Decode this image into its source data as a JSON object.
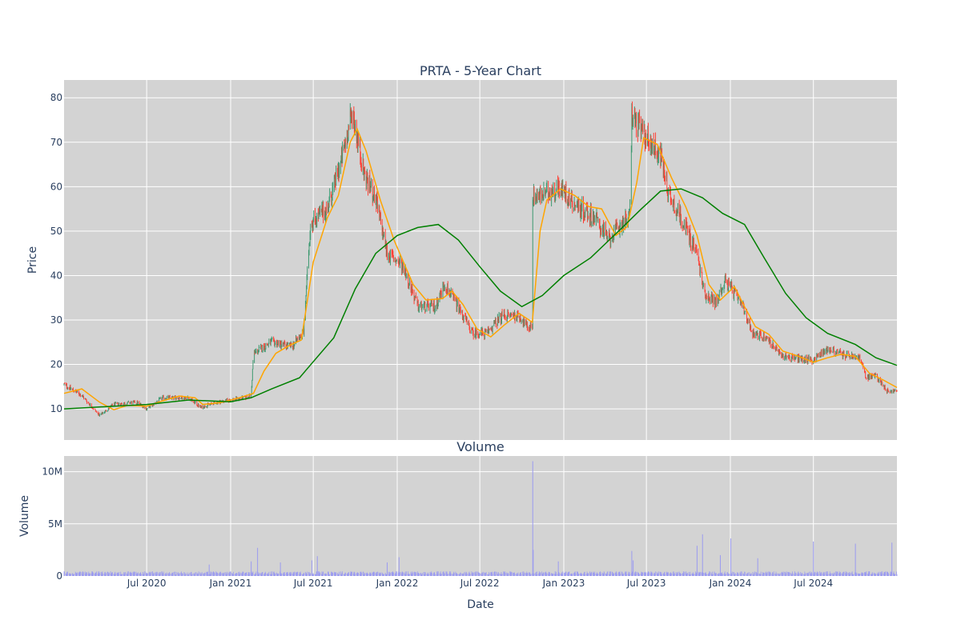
{
  "chart_data": [
    {
      "type": "candlestick",
      "title": "PRTA - 5-Year Chart",
      "xlabel": "",
      "ylabel": "Price",
      "ylim": [
        3,
        84
      ],
      "x_range": [
        "2020-01-02",
        "2024-12-31"
      ],
      "yticks": [
        10,
        20,
        30,
        40,
        50,
        60,
        70,
        80
      ],
      "grid": true,
      "plot_bg": "#d3d3d3",
      "colors": {
        "up": "#3d9970",
        "down": "#ff4136",
        "ma_short": "#ffa500",
        "ma_long": "#008000"
      },
      "price_anchors": [
        [
          "2020-01-02",
          15.5
        ],
        [
          "2020-02-10",
          13.0
        ],
        [
          "2020-03-20",
          8.5
        ],
        [
          "2020-04-20",
          11.0
        ],
        [
          "2020-06-10",
          11.5
        ],
        [
          "2020-07-01",
          10.0
        ],
        [
          "2020-08-05",
          12.5
        ],
        [
          "2020-10-01",
          12.5
        ],
        [
          "2020-10-28",
          10.3
        ],
        [
          "2020-12-01",
          11.5
        ],
        [
          "2021-02-01",
          12.5
        ],
        [
          "2021-02-15",
          13.0
        ],
        [
          "2021-02-20",
          22.5
        ],
        [
          "2021-04-01",
          25.0
        ],
        [
          "2021-05-15",
          24.0
        ],
        [
          "2021-06-10",
          27.5
        ],
        [
          "2021-06-25",
          52.0
        ],
        [
          "2021-08-01",
          55.0
        ],
        [
          "2021-09-01",
          66.0
        ],
        [
          "2021-09-25",
          77.0
        ],
        [
          "2021-10-20",
          63.0
        ],
        [
          "2021-11-15",
          57.0
        ],
        [
          "2021-12-10",
          45.0
        ],
        [
          "2022-01-15",
          42.0
        ],
        [
          "2022-02-15",
          33.0
        ],
        [
          "2022-03-25",
          33.0
        ],
        [
          "2022-04-15",
          38.0
        ],
        [
          "2022-05-15",
          33.0
        ],
        [
          "2022-06-15",
          27.0
        ],
        [
          "2022-07-15",
          27.0
        ],
        [
          "2022-08-20",
          31.0
        ],
        [
          "2022-09-25",
          31.0
        ],
        [
          "2022-10-15",
          28.0
        ],
        [
          "2022-10-24",
          29.0
        ],
        [
          "2022-10-25",
          58.0
        ],
        [
          "2022-11-20",
          58.0
        ],
        [
          "2022-12-20",
          60.0
        ],
        [
          "2023-01-25",
          56.0
        ],
        [
          "2023-03-10",
          53.0
        ],
        [
          "2023-04-10",
          48.0
        ],
        [
          "2023-05-10",
          52.0
        ],
        [
          "2023-05-25",
          53.0
        ],
        [
          "2023-05-30",
          76.0
        ],
        [
          "2023-06-30",
          71.0
        ],
        [
          "2023-08-01",
          67.0
        ],
        [
          "2023-08-20",
          58.0
        ],
        [
          "2023-09-20",
          52.0
        ],
        [
          "2023-10-20",
          45.0
        ],
        [
          "2023-11-05",
          36.0
        ],
        [
          "2023-12-01",
          34.0
        ],
        [
          "2023-12-20",
          39.0
        ],
        [
          "2024-01-10",
          36.0
        ],
        [
          "2024-02-01",
          32.0
        ],
        [
          "2024-02-20",
          27.0
        ],
        [
          "2024-03-20",
          26.0
        ],
        [
          "2024-04-20",
          22.0
        ],
        [
          "2024-05-20",
          21.5
        ],
        [
          "2024-07-01",
          21.0
        ],
        [
          "2024-08-01",
          23.5
        ],
        [
          "2024-09-10",
          22.0
        ],
        [
          "2024-10-10",
          21.5
        ],
        [
          "2024-10-25",
          17.0
        ],
        [
          "2024-11-15",
          17.5
        ],
        [
          "2024-12-10",
          14.0
        ],
        [
          "2024-12-31",
          14.0
        ]
      ],
      "series": [
        {
          "name": "",
          "kind": "moving-average-short",
          "points": [
            [
              "2020-01-02",
              13.5
            ],
            [
              "2020-02-10",
              14.5
            ],
            [
              "2020-03-20",
              11.5
            ],
            [
              "2020-04-20",
              9.8
            ],
            [
              "2020-05-20",
              10.8
            ],
            [
              "2020-07-01",
              10.6
            ],
            [
              "2020-08-05",
              11.8
            ],
            [
              "2020-09-10",
              12.9
            ],
            [
              "2020-10-15",
              12.5
            ],
            [
              "2020-11-01",
              11.0
            ],
            [
              "2020-12-10",
              11.4
            ],
            [
              "2021-01-20",
              12.5
            ],
            [
              "2021-02-20",
              13.5
            ],
            [
              "2021-03-15",
              18.5
            ],
            [
              "2021-04-10",
              22.5
            ],
            [
              "2021-05-10",
              24.3
            ],
            [
              "2021-06-05",
              25.5
            ],
            [
              "2021-07-01",
              43.0
            ],
            [
              "2021-08-01",
              53.0
            ],
            [
              "2021-08-25",
              58.0
            ],
            [
              "2021-09-20",
              70.0
            ],
            [
              "2021-10-05",
              73.0
            ],
            [
              "2021-10-25",
              68.0
            ],
            [
              "2021-11-25",
              57.0
            ],
            [
              "2021-12-25",
              48.0
            ],
            [
              "2022-02-05",
              38.0
            ],
            [
              "2022-03-05",
              34.5
            ],
            [
              "2022-04-10",
              34.8
            ],
            [
              "2022-05-01",
              36.5
            ],
            [
              "2022-05-25",
              33.5
            ],
            [
              "2022-06-25",
              28.0
            ],
            [
              "2022-07-25",
              26.2
            ],
            [
              "2022-08-25",
              29.0
            ],
            [
              "2022-09-25",
              31.5
            ],
            [
              "2022-10-24",
              29.5
            ],
            [
              "2022-11-10",
              50.0
            ],
            [
              "2022-11-25",
              57.0
            ],
            [
              "2022-12-25",
              59.5
            ],
            [
              "2023-01-25",
              58.0
            ],
            [
              "2023-02-25",
              55.5
            ],
            [
              "2023-03-25",
              55.0
            ],
            [
              "2023-04-25",
              49.0
            ],
            [
              "2023-05-20",
              51.0
            ],
            [
              "2023-06-10",
              61.0
            ],
            [
              "2023-06-25",
              71.0
            ],
            [
              "2023-07-25",
              69.5
            ],
            [
              "2023-08-25",
              62.0
            ],
            [
              "2023-09-25",
              55.5
            ],
            [
              "2023-10-20",
              49.0
            ],
            [
              "2023-11-15",
              38.0
            ],
            [
              "2023-12-10",
              34.5
            ],
            [
              "2024-01-10",
              37.5
            ],
            [
              "2024-02-01",
              33.0
            ],
            [
              "2024-02-25",
              28.5
            ],
            [
              "2024-03-25",
              26.8
            ],
            [
              "2024-04-25",
              23.0
            ],
            [
              "2024-05-25",
              22.0
            ],
            [
              "2024-07-01",
              20.5
            ],
            [
              "2024-08-01",
              21.5
            ],
            [
              "2024-09-01",
              22.3
            ],
            [
              "2024-10-01",
              21.8
            ],
            [
              "2024-11-01",
              18.0
            ],
            [
              "2024-12-01",
              16.5
            ],
            [
              "2024-12-31",
              14.8
            ]
          ]
        },
        {
          "name": "",
          "kind": "moving-average-long",
          "points": [
            [
              "2020-01-02",
              10.0
            ],
            [
              "2020-07-01",
              11.0
            ],
            [
              "2020-10-01",
              12.0
            ],
            [
              "2021-01-01",
              11.6
            ],
            [
              "2021-02-15",
              12.5
            ],
            [
              "2021-04-01",
              14.5
            ],
            [
              "2021-06-01",
              17.0
            ],
            [
              "2021-08-15",
              26.0
            ],
            [
              "2021-10-01",
              37.0
            ],
            [
              "2021-11-15",
              45.0
            ],
            [
              "2022-01-01",
              49.0
            ],
            [
              "2022-02-15",
              50.8
            ],
            [
              "2022-04-01",
              51.5
            ],
            [
              "2022-05-15",
              48.0
            ],
            [
              "2022-07-01",
              42.0
            ],
            [
              "2022-08-15",
              36.5
            ],
            [
              "2022-10-01",
              33.0
            ],
            [
              "2022-11-15",
              35.5
            ],
            [
              "2023-01-01",
              40.0
            ],
            [
              "2023-03-01",
              44.0
            ],
            [
              "2023-05-01",
              50.0
            ],
            [
              "2023-06-20",
              55.0
            ],
            [
              "2023-08-01",
              59.0
            ],
            [
              "2023-09-15",
              59.5
            ],
            [
              "2023-11-01",
              57.5
            ],
            [
              "2023-12-15",
              54.0
            ],
            [
              "2024-02-01",
              51.5
            ],
            [
              "2024-03-15",
              44.0
            ],
            [
              "2024-05-01",
              36.0
            ],
            [
              "2024-06-15",
              30.5
            ],
            [
              "2024-08-01",
              27.0
            ],
            [
              "2024-10-01",
              24.5
            ],
            [
              "2024-11-15",
              21.5
            ],
            [
              "2024-12-31",
              19.8
            ]
          ]
        }
      ]
    },
    {
      "type": "bar",
      "title": "Volume",
      "xlabel": "Date",
      "ylabel": "Volume",
      "ylim": [
        0,
        11500000
      ],
      "yticks": [
        0,
        5000000,
        10000000
      ],
      "ytick_labels": [
        "0",
        "5M",
        "10M"
      ],
      "xticks": [
        [
          "2020-07-01",
          "Jul 2020"
        ],
        [
          "2021-01-01",
          "Jan 2021"
        ],
        [
          "2021-07-01",
          "Jul 2021"
        ],
        [
          "2022-01-01",
          "Jan 2022"
        ],
        [
          "2022-07-01",
          "Jul 2022"
        ],
        [
          "2023-01-01",
          "Jan 2023"
        ],
        [
          "2023-07-01",
          "Jul 2023"
        ],
        [
          "2024-01-01",
          "Jan 2024"
        ],
        [
          "2024-07-01",
          "Jul 2024"
        ]
      ],
      "bar_color": "#9b9bf0",
      "baseline_volume": 300000,
      "spikes": [
        [
          "2020-11-15",
          1100000
        ],
        [
          "2021-02-15",
          1400000
        ],
        [
          "2021-03-01",
          2700000
        ],
        [
          "2021-04-20",
          1300000
        ],
        [
          "2021-06-28",
          1500000
        ],
        [
          "2021-07-10",
          1900000
        ],
        [
          "2021-12-10",
          1300000
        ],
        [
          "2022-01-05",
          1800000
        ],
        [
          "2022-10-25",
          11000000
        ],
        [
          "2022-10-26",
          2500000
        ],
        [
          "2022-12-20",
          1400000
        ],
        [
          "2023-05-30",
          2400000
        ],
        [
          "2023-06-02",
          1500000
        ],
        [
          "2023-10-20",
          2900000
        ],
        [
          "2023-11-01",
          4000000
        ],
        [
          "2023-12-10",
          2000000
        ],
        [
          "2024-01-02",
          3600000
        ],
        [
          "2024-03-01",
          1700000
        ],
        [
          "2024-07-01",
          3300000
        ],
        [
          "2024-10-01",
          3100000
        ],
        [
          "2024-12-20",
          3200000
        ]
      ]
    }
  ]
}
